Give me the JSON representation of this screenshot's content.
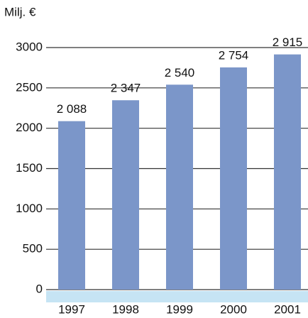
{
  "chart_data": {
    "type": "bar",
    "y_label": "Milj. €",
    "categories": [
      "1997",
      "1998",
      "1999",
      "2000",
      "2001"
    ],
    "values": [
      2088,
      2347,
      2540,
      2754,
      2915
    ],
    "value_labels": [
      "2 088",
      "2 347",
      "2 540",
      "2 754",
      "2 915"
    ],
    "color": "#7b96c9",
    "ylim": [
      0,
      3000
    ],
    "yticks": [
      0,
      500,
      1000,
      1500,
      2000,
      2500,
      3000
    ],
    "grid": true
  }
}
